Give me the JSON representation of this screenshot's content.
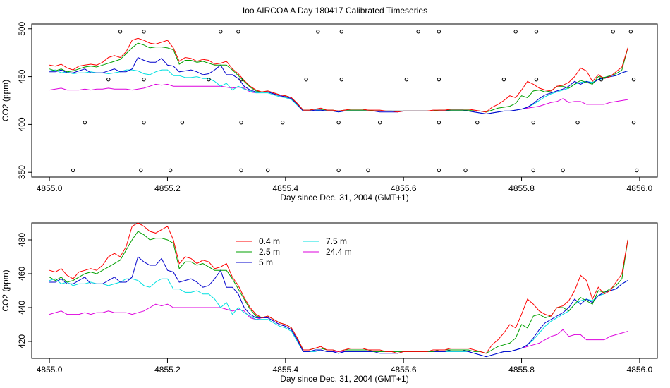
{
  "page_title": "Ioo AIRCOA A  Day 180417  Calibrated Timeseries",
  "colors": {
    "0.4 m": "#ff0000",
    "2.5 m": "#00a000",
    "5 m": "#0000cc",
    "7.5 m": "#00e0e0",
    "24.4 m": "#dd00dd"
  },
  "chart_data": [
    {
      "type": "line",
      "xlabel": "Day since Dec. 31, 2004 (GMT+1)",
      "ylabel": "CO2 (ppm)",
      "xlim": [
        4854.97,
        4856.03
      ],
      "ylim": [
        345,
        505
      ],
      "xticks": [
        "4855.0",
        "4855.2",
        "4855.4",
        "4855.6",
        "4855.8",
        "4856.0"
      ],
      "yticks": [
        "350",
        "400",
        "450",
        "500"
      ],
      "legend": "none",
      "grid": false,
      "scatter_points": [
        {
          "x": 4855.04,
          "y": 352
        },
        {
          "x": 4855.06,
          "y": 402
        },
        {
          "x": 4855.1,
          "y": 447
        },
        {
          "x": 4855.12,
          "y": 497
        },
        {
          "x": 4855.155,
          "y": 352
        },
        {
          "x": 4855.16,
          "y": 402
        },
        {
          "x": 4855.16,
          "y": 447
        },
        {
          "x": 4855.16,
          "y": 497
        },
        {
          "x": 4855.205,
          "y": 352
        },
        {
          "x": 4855.225,
          "y": 402
        },
        {
          "x": 4855.27,
          "y": 447
        },
        {
          "x": 4855.29,
          "y": 497
        },
        {
          "x": 4855.32,
          "y": 497
        },
        {
          "x": 4855.325,
          "y": 402
        },
        {
          "x": 4855.325,
          "y": 447
        },
        {
          "x": 4855.325,
          "y": 352
        },
        {
          "x": 4855.37,
          "y": 352
        },
        {
          "x": 4855.395,
          "y": 402
        },
        {
          "x": 4855.435,
          "y": 447
        },
        {
          "x": 4855.455,
          "y": 497
        },
        {
          "x": 4855.49,
          "y": 352
        },
        {
          "x": 4855.49,
          "y": 402
        },
        {
          "x": 4855.495,
          "y": 447
        },
        {
          "x": 4855.495,
          "y": 497
        },
        {
          "x": 4855.54,
          "y": 352
        },
        {
          "x": 4855.56,
          "y": 402
        },
        {
          "x": 4855.605,
          "y": 447
        },
        {
          "x": 4855.625,
          "y": 497
        },
        {
          "x": 4855.66,
          "y": 352
        },
        {
          "x": 4855.66,
          "y": 402
        },
        {
          "x": 4855.66,
          "y": 447
        },
        {
          "x": 4855.66,
          "y": 497
        },
        {
          "x": 4855.705,
          "y": 352
        },
        {
          "x": 4855.725,
          "y": 402
        },
        {
          "x": 4855.77,
          "y": 447
        },
        {
          "x": 4855.79,
          "y": 497
        },
        {
          "x": 4855.82,
          "y": 352
        },
        {
          "x": 4855.82,
          "y": 402
        },
        {
          "x": 4855.825,
          "y": 447
        },
        {
          "x": 4855.825,
          "y": 497
        },
        {
          "x": 4855.87,
          "y": 352
        },
        {
          "x": 4855.895,
          "y": 402
        },
        {
          "x": 4855.935,
          "y": 447
        },
        {
          "x": 4855.955,
          "y": 497
        },
        {
          "x": 4855.985,
          "y": 497
        },
        {
          "x": 4855.99,
          "y": 447
        },
        {
          "x": 4855.99,
          "y": 402
        },
        {
          "x": 4855.995,
          "y": 352
        }
      ],
      "x": [
        4855.0,
        4855.01,
        4855.02,
        4855.03,
        4855.04,
        4855.05,
        4855.06,
        4855.07,
        4855.08,
        4855.09,
        4855.1,
        4855.11,
        4855.12,
        4855.13,
        4855.14,
        4855.15,
        4855.16,
        4855.17,
        4855.18,
        4855.19,
        4855.2,
        4855.21,
        4855.22,
        4855.23,
        4855.24,
        4855.25,
        4855.26,
        4855.27,
        4855.28,
        4855.29,
        4855.3,
        4855.31,
        4855.32,
        4855.33,
        4855.34,
        4855.35,
        4855.36,
        4855.37,
        4855.38,
        4855.39,
        4855.4,
        4855.41,
        4855.42,
        4855.43,
        4855.44,
        4855.45,
        4855.46,
        4855.47,
        4855.48,
        4855.49,
        4855.5,
        4855.51,
        4855.52,
        4855.53,
        4855.54,
        4855.55,
        4855.56,
        4855.57,
        4855.58,
        4855.59,
        4855.6,
        4855.61,
        4855.62,
        4855.63,
        4855.64,
        4855.65,
        4855.66,
        4855.67,
        4855.68,
        4855.69,
        4855.7,
        4855.71,
        4855.72,
        4855.73,
        4855.74,
        4855.75,
        4855.76,
        4855.77,
        4855.78,
        4855.79,
        4855.8,
        4855.81,
        4855.82,
        4855.83,
        4855.84,
        4855.85,
        4855.86,
        4855.87,
        4855.88,
        4855.89,
        4855.9,
        4855.91,
        4855.92,
        4855.93,
        4855.94,
        4855.95,
        4855.96,
        4855.97,
        4855.98
      ],
      "series": [
        {
          "name": "0.4 m",
          "values": [
            462,
            461,
            463,
            459,
            457,
            461,
            462,
            463,
            462,
            465,
            470,
            472,
            470,
            476,
            488,
            490,
            488,
            485,
            484,
            486,
            488,
            480,
            466,
            470,
            469,
            466,
            468,
            467,
            463,
            464,
            466,
            458,
            453,
            446,
            440,
            436,
            434,
            435,
            433,
            431,
            430,
            428,
            422,
            415,
            415,
            416,
            417,
            415,
            415,
            414,
            415,
            416,
            416,
            416,
            415,
            415,
            415,
            414,
            414,
            413,
            414,
            414,
            414,
            414,
            414,
            415,
            415,
            415,
            416,
            416,
            416,
            416,
            415,
            414,
            413,
            418,
            421,
            425,
            430,
            428,
            436,
            445,
            442,
            438,
            436,
            435,
            440,
            441,
            444,
            450,
            459,
            456,
            445,
            452,
            448,
            450,
            455,
            460,
            480
          ]
        },
        {
          "name": "2.5 m",
          "values": [
            458,
            456,
            458,
            455,
            456,
            458,
            460,
            461,
            460,
            462,
            464,
            466,
            468,
            474,
            480,
            485,
            483,
            480,
            481,
            481,
            480,
            478,
            463,
            467,
            467,
            465,
            466,
            464,
            462,
            462,
            462,
            457,
            451,
            445,
            439,
            435,
            434,
            435,
            433,
            431,
            430,
            428,
            422,
            415,
            415,
            416,
            416,
            415,
            415,
            414,
            415,
            415,
            415,
            415,
            415,
            414,
            414,
            414,
            414,
            414,
            414,
            414,
            414,
            414,
            414,
            414,
            415,
            415,
            415,
            415,
            415,
            415,
            414,
            414,
            413,
            415,
            417,
            418,
            419,
            422,
            430,
            428,
            435,
            436,
            434,
            435,
            440,
            440,
            438,
            442,
            446,
            444,
            442,
            450,
            449,
            451,
            453,
            457,
            480
          ]
        },
        {
          "name": "5 m",
          "values": [
            455,
            455,
            457,
            454,
            454,
            456,
            458,
            454,
            454,
            454,
            456,
            458,
            455,
            455,
            458,
            470,
            467,
            465,
            465,
            469,
            462,
            461,
            455,
            456,
            457,
            455,
            452,
            453,
            457,
            462,
            452,
            452,
            448,
            440,
            436,
            434,
            434,
            434,
            432,
            430,
            429,
            427,
            421,
            414,
            414,
            415,
            415,
            414,
            414,
            413,
            414,
            414,
            414,
            414,
            414,
            414,
            413,
            413,
            413,
            413,
            414,
            414,
            414,
            414,
            414,
            414,
            414,
            414,
            415,
            415,
            415,
            414,
            413,
            412,
            411,
            412,
            413,
            414,
            414,
            415,
            416,
            418,
            422,
            427,
            431,
            433,
            435,
            437,
            440,
            445,
            442,
            445,
            443,
            447,
            449,
            450,
            451,
            454,
            456
          ]
        },
        {
          "name": "7.5 m",
          "values": [
            456,
            457,
            454,
            455,
            453,
            454,
            454,
            455,
            454,
            454,
            453,
            454,
            455,
            457,
            457,
            456,
            453,
            452,
            455,
            457,
            457,
            451,
            451,
            449,
            449,
            450,
            448,
            448,
            445,
            440,
            443,
            436,
            440,
            437,
            435,
            433,
            433,
            433,
            431,
            429,
            428,
            426,
            420,
            414,
            414,
            414,
            415,
            414,
            414,
            413,
            414,
            414,
            414,
            414,
            414,
            414,
            414,
            414,
            414,
            414,
            414,
            414,
            414,
            414,
            414,
            414,
            414,
            414,
            414,
            414,
            414,
            414,
            413,
            412,
            411,
            412,
            413,
            414,
            414,
            415,
            416,
            418,
            421,
            425,
            429,
            432,
            434,
            436,
            438,
            442,
            444,
            445,
            444,
            447,
            448,
            450,
            451,
            454,
            456
          ]
        },
        {
          "name": "24.4 m",
          "values": [
            436,
            437,
            438,
            436,
            436,
            436,
            437,
            436,
            437,
            437,
            438,
            437,
            437,
            437,
            436,
            437,
            438,
            440,
            442,
            441,
            442,
            440,
            440,
            440,
            440,
            440,
            440,
            440,
            440,
            440,
            439,
            438,
            439,
            438,
            434,
            433,
            434,
            434,
            432,
            430,
            429,
            427,
            420,
            414,
            414,
            414,
            415,
            414,
            414,
            414,
            414,
            414,
            414,
            414,
            414,
            414,
            414,
            414,
            414,
            414,
            414,
            414,
            414,
            414,
            414,
            414,
            414,
            414,
            414,
            414,
            414,
            414,
            413,
            412,
            411,
            412,
            413,
            414,
            414,
            415,
            416,
            417,
            418,
            419,
            421,
            423,
            424,
            427,
            423,
            424,
            424,
            421,
            421,
            421,
            421,
            423,
            424,
            425,
            426
          ]
        }
      ]
    },
    {
      "type": "line",
      "xlabel": "Day since Dec. 31, 2004 (GMT+1)",
      "ylabel": "CO2 (ppm)",
      "xlim": [
        4854.97,
        4856.03
      ],
      "ylim": [
        410,
        490
      ],
      "xticks": [
        "4855.0",
        "4855.2",
        "4855.4",
        "4855.6",
        "4855.8",
        "4856.0"
      ],
      "yticks": [
        "420",
        "440",
        "460",
        "480"
      ],
      "legend": "top-left",
      "grid": false,
      "legend_entries": [
        "0.4 m",
        "2.5 m",
        "5 m",
        "7.5 m",
        "24.4 m"
      ],
      "uses_series_of_chart": 0
    }
  ]
}
